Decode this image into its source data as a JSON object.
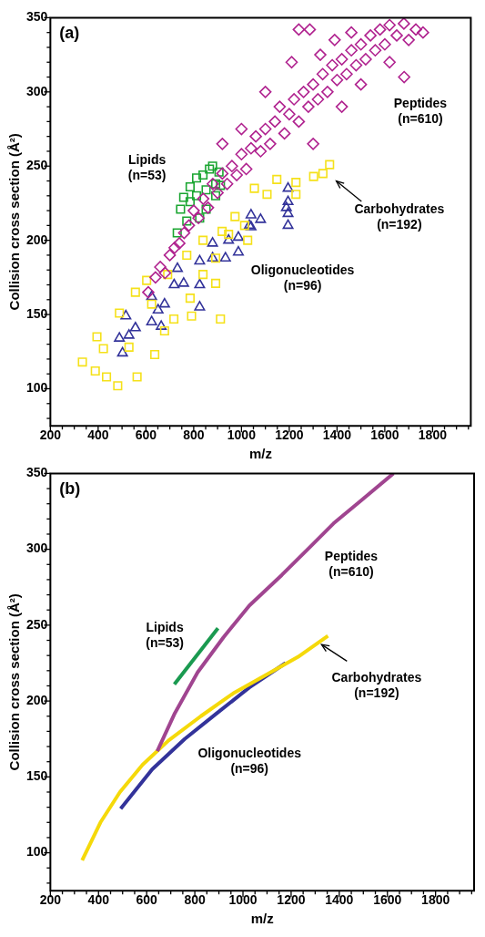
{
  "chart_data": [
    {
      "type": "scatter",
      "xlabel": "m/z",
      "ylabel": "Collision cross section (Å²)",
      "annotations": [
        "(a)"
      ],
      "xlim": [
        200,
        1960
      ],
      "ylim": [
        75,
        350
      ],
      "xticks": [
        200,
        {
          "value": 250,
          "label": null
        },
        {
          "value": 300,
          "label": null
        },
        {
          "value": 350,
          "label": null
        },
        400,
        {
          "value": 450,
          "label": null
        },
        {
          "value": 500,
          "label": null
        },
        {
          "value": 550,
          "label": null
        },
        600,
        {
          "value": 650,
          "label": null
        },
        {
          "value": 700,
          "label": null
        },
        {
          "value": 750,
          "label": null
        },
        800,
        {
          "value": 850,
          "label": null
        },
        {
          "value": 900,
          "label": null
        },
        {
          "value": 950,
          "label": null
        },
        1000,
        {
          "value": 1050,
          "label": null
        },
        {
          "value": 1100,
          "label": null
        },
        {
          "value": 1150,
          "label": null
        },
        1200,
        {
          "value": 1250,
          "label": null
        },
        {
          "value": 1300,
          "label": null
        },
        {
          "value": 1350,
          "label": null
        },
        1400,
        {
          "value": 1450,
          "label": null
        },
        {
          "value": 1500,
          "label": null
        },
        {
          "value": 1550,
          "label": null
        },
        1600,
        {
          "value": 1650,
          "label": null
        },
        {
          "value": 1700,
          "label": null
        },
        {
          "value": 1750,
          "label": null
        },
        1800,
        {
          "value": 1850,
          "label": null
        },
        {
          "value": 1900,
          "label": null
        },
        {
          "value": 1950,
          "label": null
        }
      ],
      "yticks": [
        {
          "value": 80,
          "label": null
        },
        {
          "value": 90,
          "label": null
        },
        100,
        {
          "value": 110,
          "label": null
        },
        {
          "value": 120,
          "label": null
        },
        {
          "value": 130,
          "label": null
        },
        {
          "value": 140,
          "label": null
        },
        150,
        {
          "value": 160,
          "label": null
        },
        {
          "value": 170,
          "label": null
        },
        {
          "value": 180,
          "label": null
        },
        {
          "value": 190,
          "label": null
        },
        200,
        {
          "value": 210,
          "label": null
        },
        {
          "value": 220,
          "label": null
        },
        {
          "value": 230,
          "label": null
        },
        {
          "value": 240,
          "label": null
        },
        250,
        {
          "value": 260,
          "label": null
        },
        {
          "value": 270,
          "label": null
        },
        {
          "value": 280,
          "label": null
        },
        {
          "value": 290,
          "label": null
        },
        300,
        {
          "value": 310,
          "label": null
        },
        {
          "value": 320,
          "label": null
        },
        {
          "value": 330,
          "label": null
        },
        {
          "value": 340,
          "label": null
        },
        350
      ],
      "grid": false,
      "legend": false,
      "series": [
        {
          "name": "Peptides\n(n=610)",
          "color": "#b0228f",
          "marker": "diamond",
          "x": [
            610,
            640,
            660,
            680,
            700,
            720,
            740,
            760,
            780,
            800,
            820,
            840,
            860,
            880,
            900,
            920,
            940,
            960,
            980,
            1000,
            1020,
            1040,
            1060,
            1080,
            1100,
            1120,
            1140,
            1160,
            1180,
            1200,
            1220,
            1240,
            1260,
            1280,
            1300,
            1320,
            1340,
            1360,
            1380,
            1400,
            1420,
            1440,
            1460,
            1480,
            1500,
            1520,
            1540,
            1560,
            1580,
            1600,
            1620,
            1650,
            1680,
            1700,
            1730,
            1760,
            1100,
            1210,
            1000,
            920,
            1300,
            1420,
            1500,
            1620,
            1330,
            1240,
            1460,
            1390,
            1286,
            1681
          ],
          "values": [
            165,
            175,
            182,
            178,
            190,
            195,
            198,
            205,
            210,
            220,
            215,
            228,
            222,
            238,
            232,
            245,
            238,
            250,
            244,
            258,
            248,
            262,
            270,
            260,
            275,
            265,
            280,
            290,
            272,
            285,
            295,
            280,
            300,
            290,
            305,
            295,
            312,
            300,
            318,
            308,
            322,
            312,
            328,
            318,
            332,
            322,
            338,
            328,
            342,
            332,
            345,
            338,
            346,
            335,
            342,
            340,
            300,
            320,
            275,
            265,
            265,
            290,
            305,
            320,
            325,
            342,
            340,
            335,
            342,
            310
          ]
        },
        {
          "name": "Carbohydrates\n(n=192)",
          "color": "#f5e11a",
          "marker": "square",
          "x": [
            334,
            482,
            563,
            637,
            912,
            892,
            791,
            717,
            556,
            603,
            771,
            839,
            919,
            1013,
            1054,
            1148,
            1228,
            1302,
            1369,
            1341,
            1107,
            1228,
            973,
            946,
            839,
            691,
            624,
            489,
            422,
            395,
            529,
            435,
            388,
            678,
            785,
            892,
            1026
          ],
          "values": [
            118,
            102,
            108,
            123,
            147,
            171,
            149,
            147,
            165,
            173,
            190,
            200,
            206,
            210,
            235,
            241,
            239,
            243,
            251,
            245,
            231,
            231,
            216,
            204,
            177,
            177,
            157,
            151,
            127,
            135,
            128,
            108,
            112,
            139,
            161,
            188,
            200
          ]
        },
        {
          "name": "Lipids\n(n=53)",
          "color": "#1aa531",
          "marker": "square",
          "x": [
            731,
            745,
            758,
            785,
            812,
            839,
            866,
            879,
            906,
            912,
            892,
            852,
            825,
            771,
            785,
            812,
            852,
            892
          ],
          "values": [
            205,
            221,
            229,
            236,
            242,
            244,
            248,
            250,
            246,
            237,
            230,
            221,
            215,
            213,
            226,
            230,
            234,
            238
          ]
        },
        {
          "name": "Oligonucleotides\n(n=96)",
          "color": "#33339a",
          "marker": "triangle",
          "x": [
            502,
            516,
            529,
            556,
            489,
            624,
            664,
            651,
            624,
            678,
            718,
            758,
            732,
            825,
            825,
            825,
            879,
            879,
            933,
            946,
            987,
            987,
            1033,
            1040,
            1080,
            1040,
            1195,
            1195,
            1195,
            1195,
            1188
          ],
          "values": [
            124,
            149,
            136,
            141,
            134,
            145,
            142,
            153,
            162,
            157,
            170,
            171,
            181,
            155,
            170,
            186,
            188,
            198,
            188,
            200,
            202,
            192,
            210,
            217,
            214,
            209,
            210,
            218,
            226,
            235,
            222
          ]
        }
      ]
    },
    {
      "type": "line",
      "xlabel": "m/z",
      "ylabel": "Collision cross section (Å²)",
      "annotations": [
        "(b)"
      ],
      "xlim": [
        200,
        1960
      ],
      "ylim": [
        75,
        350
      ],
      "xticks": [
        200,
        {
          "value": 250,
          "label": null
        },
        {
          "value": 300,
          "label": null
        },
        {
          "value": 350,
          "label": null
        },
        400,
        {
          "value": 450,
          "label": null
        },
        {
          "value": 500,
          "label": null
        },
        {
          "value": 550,
          "label": null
        },
        600,
        {
          "value": 650,
          "label": null
        },
        {
          "value": 700,
          "label": null
        },
        {
          "value": 750,
          "label": null
        },
        800,
        {
          "value": 850,
          "label": null
        },
        {
          "value": 900,
          "label": null
        },
        {
          "value": 950,
          "label": null
        },
        1000,
        {
          "value": 1050,
          "label": null
        },
        {
          "value": 1100,
          "label": null
        },
        {
          "value": 1150,
          "label": null
        },
        1200,
        {
          "value": 1250,
          "label": null
        },
        {
          "value": 1300,
          "label": null
        },
        {
          "value": 1350,
          "label": null
        },
        1400,
        {
          "value": 1450,
          "label": null
        },
        {
          "value": 1500,
          "label": null
        },
        {
          "value": 1550,
          "label": null
        },
        1600,
        {
          "value": 1650,
          "label": null
        },
        {
          "value": 1700,
          "label": null
        },
        {
          "value": 1750,
          "label": null
        },
        1800,
        {
          "value": 1850,
          "label": null
        },
        {
          "value": 1900,
          "label": null
        },
        {
          "value": 1950,
          "label": null
        }
      ],
      "yticks": [
        {
          "value": 80,
          "label": null
        },
        {
          "value": 90,
          "label": null
        },
        100,
        {
          "value": 110,
          "label": null
        },
        {
          "value": 120,
          "label": null
        },
        {
          "value": 130,
          "label": null
        },
        {
          "value": 140,
          "label": null
        },
        150,
        {
          "value": 160,
          "label": null
        },
        {
          "value": 170,
          "label": null
        },
        {
          "value": 180,
          "label": null
        },
        {
          "value": 190,
          "label": null
        },
        200,
        {
          "value": 210,
          "label": null
        },
        {
          "value": 220,
          "label": null
        },
        {
          "value": 230,
          "label": null
        },
        {
          "value": 240,
          "label": null
        },
        250,
        {
          "value": 260,
          "label": null
        },
        {
          "value": 270,
          "label": null
        },
        {
          "value": 280,
          "label": null
        },
        {
          "value": 290,
          "label": null
        },
        300,
        {
          "value": 310,
          "label": null
        },
        {
          "value": 320,
          "label": null
        },
        {
          "value": 330,
          "label": null
        },
        {
          "value": 340,
          "label": null
        },
        350
      ],
      "grid": false,
      "legend": false,
      "marker": "none",
      "series": [
        {
          "name": "Peptides\n(n=610)",
          "color": "#a04590",
          "x": [
            644,
            717,
            812,
            919,
            1027,
            1161,
            1269,
            1376,
            1497,
            1625
          ],
          "values": [
            167,
            192,
            219,
            242,
            263,
            283,
            300,
            317,
            333,
            350
          ]
        },
        {
          "name": "Carbohydrates\n(n=192)",
          "color": "#f5d90a",
          "x": [
            332,
            408,
            489,
            583,
            691,
            825,
            959,
            1094,
            1228,
            1353
          ],
          "values": [
            95,
            120,
            140,
            158,
            174,
            190,
            205,
            217,
            229,
            243
          ]
        },
        {
          "name": "Lipids\n(n=53)",
          "color": "#1a9a50",
          "x": [
            715,
            896
          ],
          "values": [
            211,
            248
          ]
        },
        {
          "name": "Oligonucleotides\n(n=96)",
          "color": "#33339a",
          "x": [
            492,
            623,
            758,
            892,
            1027,
            1177
          ],
          "values": [
            129,
            155,
            175,
            192,
            209,
            225
          ]
        }
      ]
    }
  ]
}
